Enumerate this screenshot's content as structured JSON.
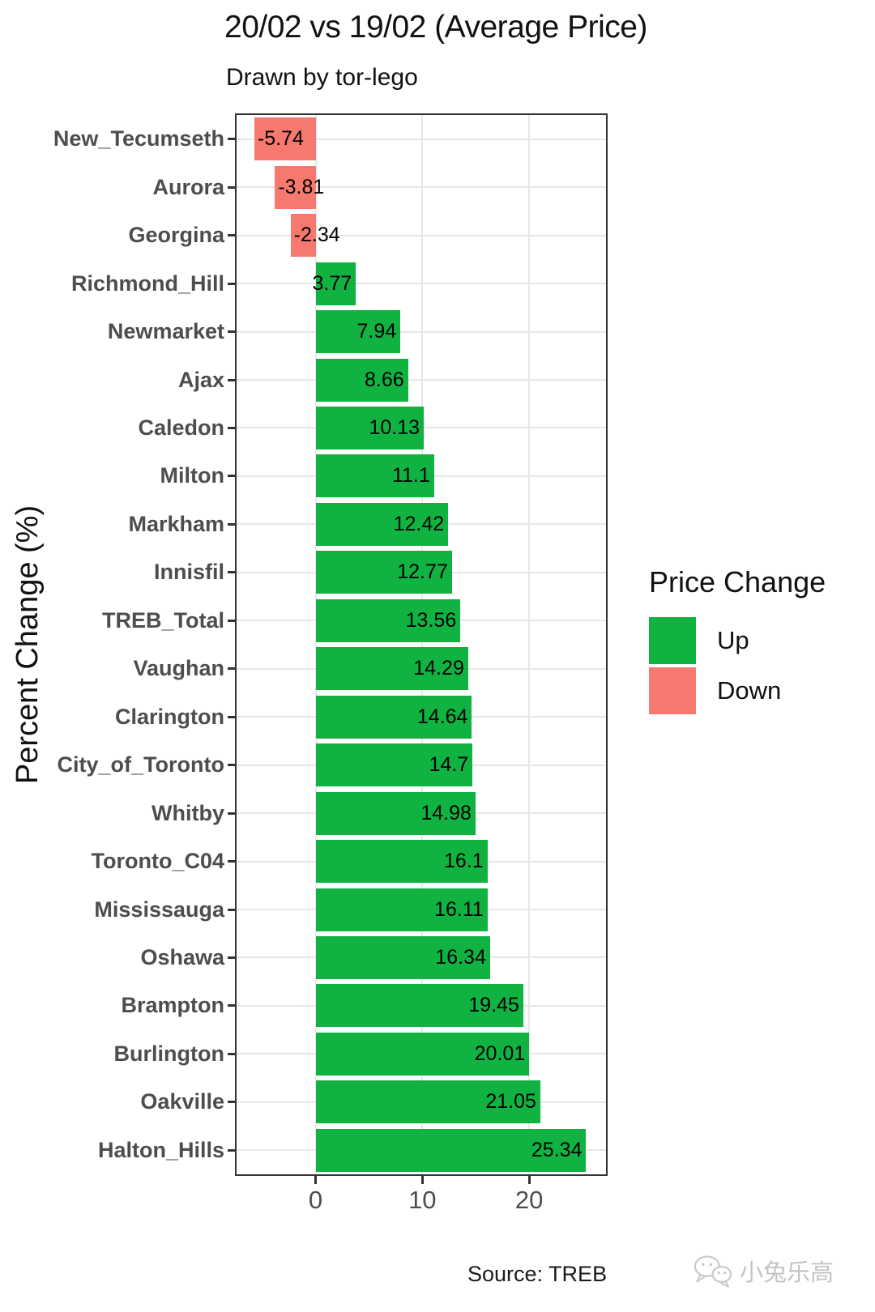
{
  "title": "20/02 vs 19/02 (Average Price)",
  "subtitle": "Drawn by tor-lego",
  "y_axis_title": "Percent Change (%)",
  "source_note": "Source: TREB",
  "watermark_text": "小兔乐高",
  "colors": {
    "up": "#10b241",
    "down": "#f5796f",
    "grid": "#e7e7e7",
    "panel_border": "#333333",
    "axis_text": "#4d4d4d"
  },
  "legend": {
    "title": "Price Change",
    "position": "right",
    "items": [
      {
        "label": "Up",
        "color": "#10b241"
      },
      {
        "label": "Down",
        "color": "#f5796f"
      }
    ]
  },
  "chart_data": {
    "type": "bar",
    "orientation": "horizontal",
    "title": "20/02 vs 19/02 (Average Price)",
    "subtitle": "Drawn by tor-lego",
    "xlabel": "",
    "ylabel": "Percent Change (%)",
    "categories": [
      "New_Tecumseth",
      "Aurora",
      "Georgina",
      "Richmond_Hill",
      "Newmarket",
      "Ajax",
      "Caledon",
      "Milton",
      "Markham",
      "Innisfil",
      "TREB_Total",
      "Vaughan",
      "Clarington",
      "City_of_Toronto",
      "Whitby",
      "Toronto_C04",
      "Mississauga",
      "Oshawa",
      "Brampton",
      "Burlington",
      "Oakville",
      "Halton_Hills"
    ],
    "values": [
      -5.74,
      -3.81,
      -2.34,
      3.77,
      7.94,
      8.66,
      10.13,
      11.1,
      12.42,
      12.77,
      13.56,
      14.29,
      14.64,
      14.7,
      14.98,
      16.1,
      16.11,
      16.34,
      19.45,
      20.01,
      21.05,
      25.34
    ],
    "value_labels": [
      "-5.74",
      "-3.81",
      "-2.34",
      "3.77",
      "7.94",
      "8.66",
      "10.13",
      "11.1",
      "12.42",
      "12.77",
      "13.56",
      "14.29",
      "14.64",
      "14.7",
      "14.98",
      "16.1",
      "16.11",
      "16.34",
      "19.45",
      "20.01",
      "21.05",
      "25.34"
    ],
    "xlim": [
      -7.4,
      27.2
    ],
    "xticks": [
      0,
      10,
      20
    ],
    "grid": "major-only",
    "legend_position": "right",
    "source": "TREB"
  }
}
